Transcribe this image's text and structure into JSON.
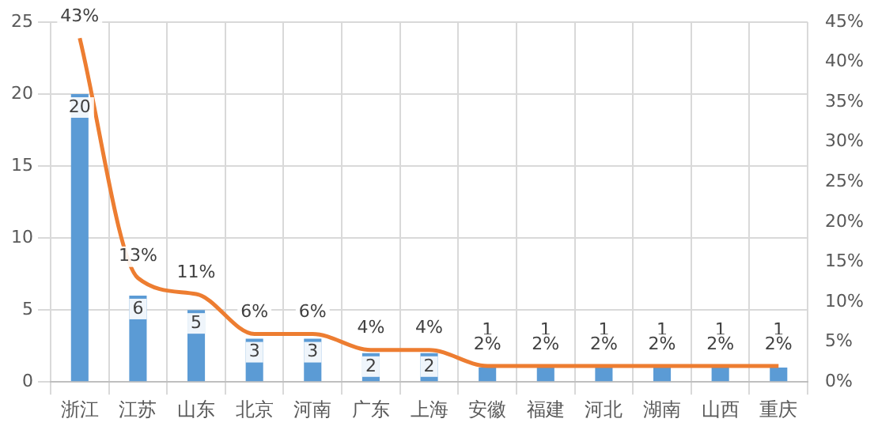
{
  "chart_data": {
    "type": "bar",
    "categories": [
      "浙江",
      "江苏",
      "山东",
      "北京",
      "河南",
      "广东",
      "上海",
      "安徽",
      "福建",
      "河北",
      "湖南",
      "山西",
      "重庆"
    ],
    "series": [
      {
        "color": "#5b9bd5",
        "values": [
          20,
          6,
          5,
          3,
          3,
          2,
          2,
          1,
          1,
          1,
          1,
          1,
          1
        ],
        "value_labels": [
          "20",
          "6",
          "5",
          "3",
          "3",
          "2",
          "2",
          "1",
          "1",
          "1",
          "1",
          "1",
          "1"
        ]
      },
      {
        "type": "line",
        "axis": "y2",
        "color": "#ed7d31",
        "values": [
          43,
          13,
          11,
          6,
          6,
          4,
          4,
          2,
          2,
          2,
          2,
          2,
          2
        ],
        "value_labels": [
          "43%",
          "13%",
          "11%",
          "6%",
          "6%",
          "4%",
          "4%",
          "2%",
          "2%",
          "2%",
          "2%",
          "2%",
          "2%"
        ]
      }
    ],
    "ylim": [
      0,
      25
    ],
    "yticks": [
      0,
      5,
      10,
      15,
      20,
      25
    ],
    "y2lim": [
      0,
      45
    ],
    "y2ticks": [
      {
        "value": 0,
        "label": "0%"
      },
      {
        "value": 5,
        "label": "5%"
      },
      {
        "value": 10,
        "label": "10%"
      },
      {
        "value": 15,
        "label": "15%"
      },
      {
        "value": 20,
        "label": "20%"
      },
      {
        "value": 25,
        "label": "25%"
      },
      {
        "value": 30,
        "label": "30%"
      },
      {
        "value": 35,
        "label": "35%"
      },
      {
        "value": 40,
        "label": "40%"
      },
      {
        "value": 45,
        "label": "45%"
      }
    ],
    "grid": true,
    "legend": false,
    "marker": "none"
  }
}
